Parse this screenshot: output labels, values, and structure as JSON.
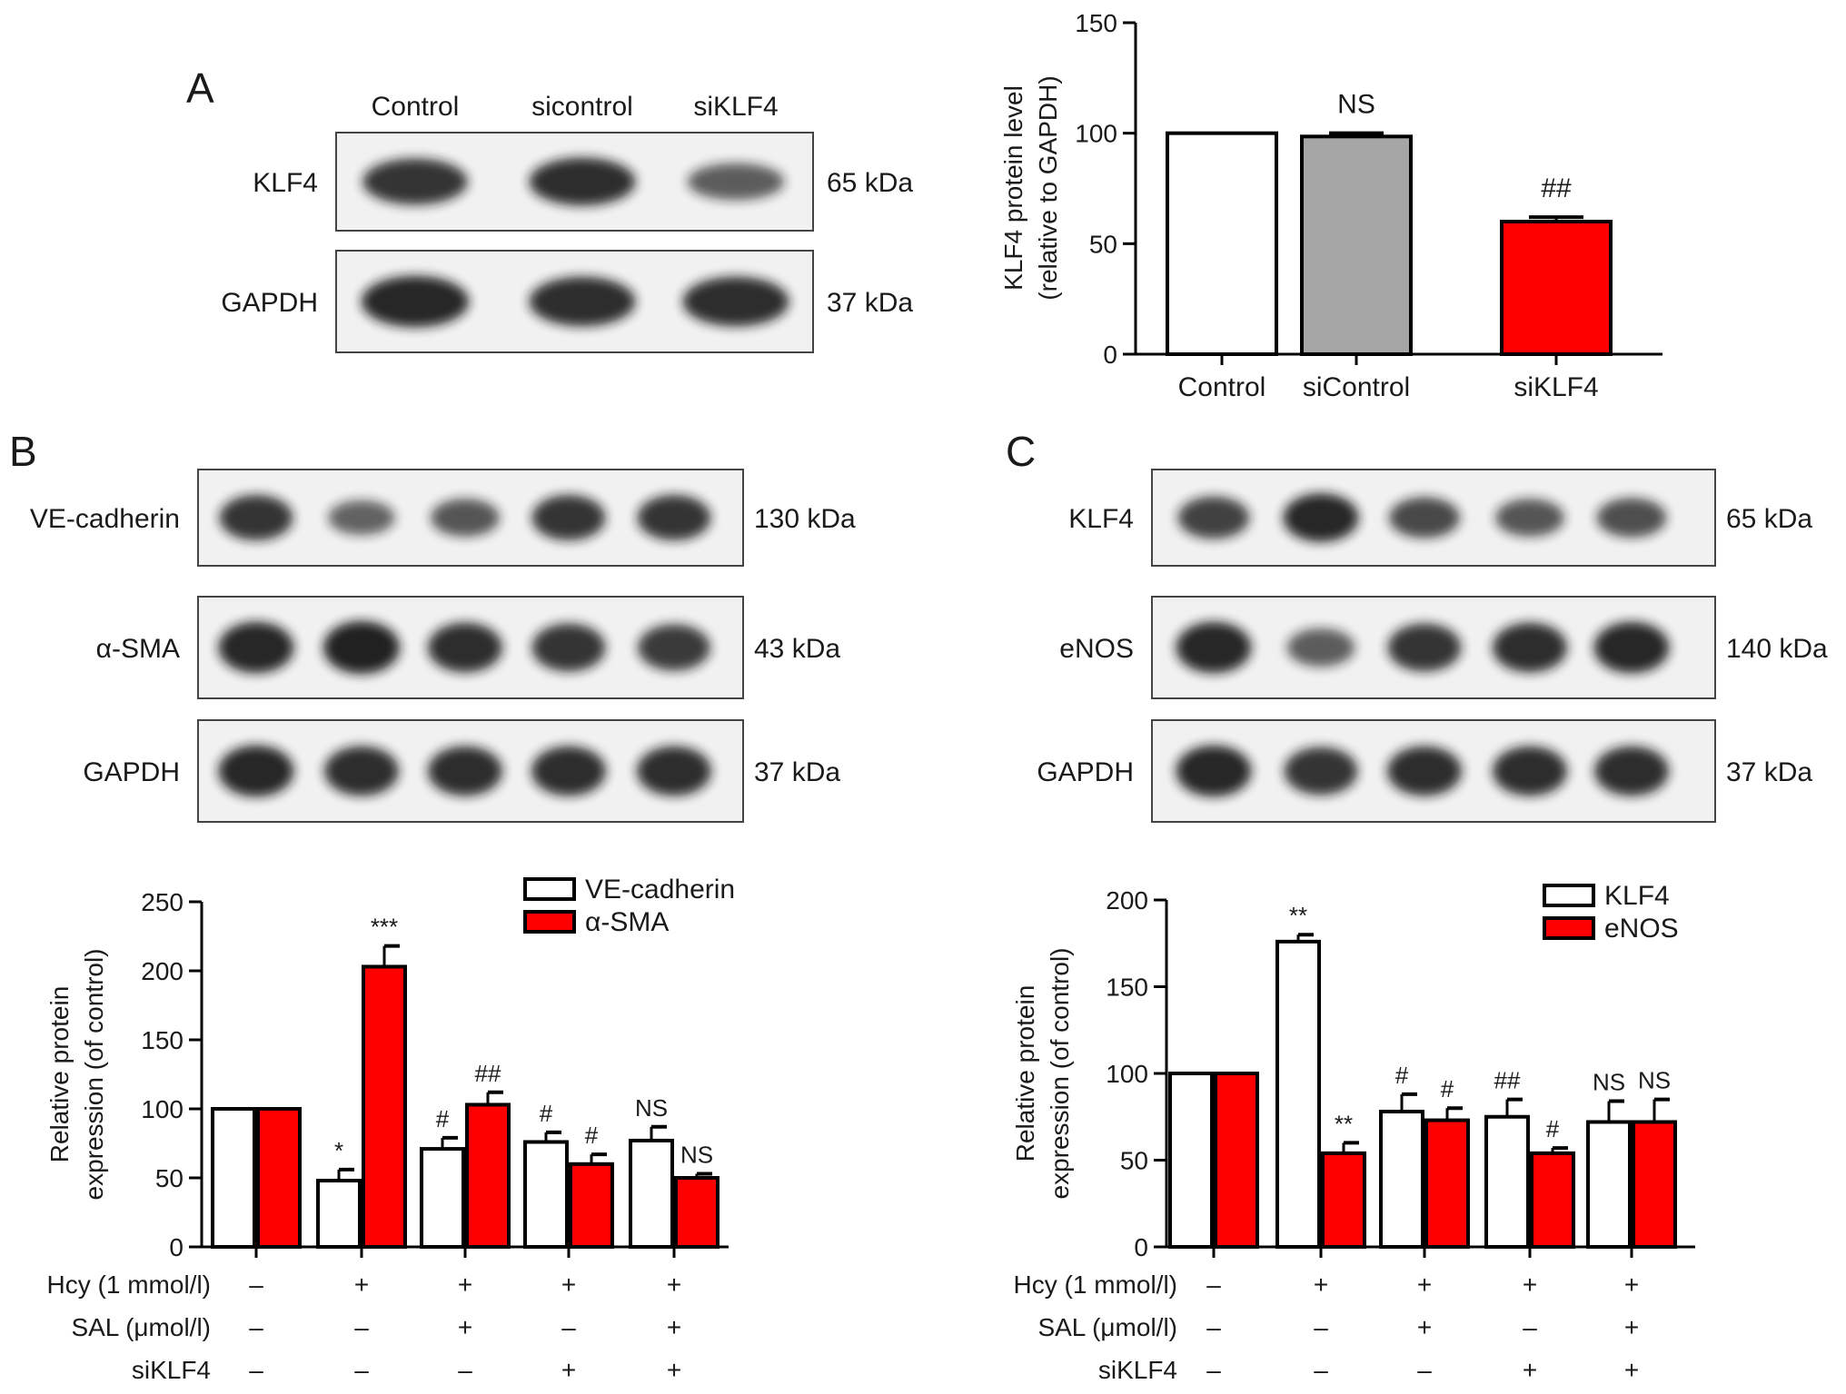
{
  "panels": {
    "a": {
      "label": "A",
      "lanes": [
        "Control",
        "sicontrol",
        "siKLF4"
      ],
      "blots": [
        {
          "protein": "KLF4",
          "size": "65 kDa",
          "bands": [
            0.85,
            0.9,
            0.55
          ]
        },
        {
          "protein": "GAPDH",
          "size": "37 kDa",
          "bands": [
            0.95,
            0.9,
            0.9
          ]
        }
      ]
    },
    "b": {
      "label": "B",
      "blots": [
        {
          "protein": "VE-cadherin",
          "size": "130 kDa",
          "bands": [
            0.85,
            0.5,
            0.6,
            0.85,
            0.85
          ]
        },
        {
          "protein": "α-SMA",
          "size": "43 kDa",
          "bands": [
            0.95,
            1.0,
            0.9,
            0.85,
            0.8
          ]
        },
        {
          "protein": "GAPDH",
          "size": "37 kDa",
          "bands": [
            0.95,
            0.9,
            0.9,
            0.9,
            0.9
          ]
        }
      ]
    },
    "c": {
      "label": "C",
      "blots": [
        {
          "protein": "KLF4",
          "size": "65 kDa",
          "bands": [
            0.75,
            0.95,
            0.7,
            0.6,
            0.65
          ]
        },
        {
          "protein": "eNOS",
          "size": "140 kDa",
          "bands": [
            0.95,
            0.55,
            0.85,
            0.9,
            0.95
          ]
        },
        {
          "protein": "GAPDH",
          "size": "37 kDa",
          "bands": [
            0.95,
            0.85,
            0.9,
            0.9,
            0.9
          ]
        }
      ]
    }
  },
  "conditions": {
    "rows": [
      {
        "label": "Hcy (1 mmol/l)",
        "values": [
          "–",
          "+",
          "+",
          "+",
          "+"
        ]
      },
      {
        "label": "SAL (μmol/l)",
        "values": [
          "–",
          "–",
          "+",
          "–",
          "+"
        ]
      },
      {
        "label": "siKLF4",
        "values": [
          "–",
          "–",
          "–",
          "+",
          "+"
        ]
      }
    ]
  },
  "chart_data": [
    {
      "id": "a",
      "type": "bar",
      "ylabel": [
        "KLF4 protein level",
        "(relative to GAPDH)"
      ],
      "ylim": [
        0,
        150
      ],
      "yticks": [
        0,
        50,
        100,
        150
      ],
      "categories": [
        "Control",
        "siControl",
        "siKLF4"
      ],
      "values": [
        100,
        98.5,
        60
      ],
      "errors": [
        0,
        1.5,
        2
      ],
      "colors": [
        "#ffffff",
        "#a6a6a6",
        "#ff0000"
      ],
      "annotations": [
        "",
        "NS",
        "##"
      ]
    },
    {
      "id": "b",
      "type": "bar",
      "ylabel": [
        "Relative protein",
        "expression (of control)"
      ],
      "ylim": [
        0,
        250
      ],
      "yticks": [
        0,
        50,
        100,
        150,
        200,
        250
      ],
      "series": [
        {
          "name": "VE-cadherin",
          "color": "#ffffff",
          "values": [
            100,
            48,
            71,
            76,
            77
          ],
          "errors": [
            0,
            8,
            8,
            7,
            10
          ],
          "annotations": [
            "",
            "*",
            "#",
            "#",
            "NS"
          ]
        },
        {
          "name": "α-SMA",
          "color": "#ff0000",
          "values": [
            100,
            203,
            103,
            60,
            50
          ],
          "errors": [
            0,
            15,
            9,
            7,
            3
          ],
          "annotations": [
            "",
            "***",
            "##",
            "#",
            "NS"
          ]
        }
      ]
    },
    {
      "id": "c",
      "type": "bar",
      "ylabel": [
        "Relative protein",
        "expression (of control)"
      ],
      "ylim": [
        0,
        200
      ],
      "yticks": [
        0,
        50,
        100,
        150,
        200
      ],
      "series": [
        {
          "name": "KLF4",
          "color": "#ffffff",
          "values": [
            100,
            176,
            78,
            75,
            72
          ],
          "errors": [
            0,
            4,
            10,
            10,
            12
          ],
          "annotations": [
            "",
            "**",
            "#",
            "##",
            "NS"
          ]
        },
        {
          "name": "eNOS",
          "color": "#ff0000",
          "values": [
            100,
            54,
            73,
            54,
            72
          ],
          "errors": [
            0,
            6,
            7,
            3,
            13
          ],
          "annotations": [
            "",
            "**",
            "#",
            "#",
            "NS"
          ]
        }
      ]
    }
  ]
}
